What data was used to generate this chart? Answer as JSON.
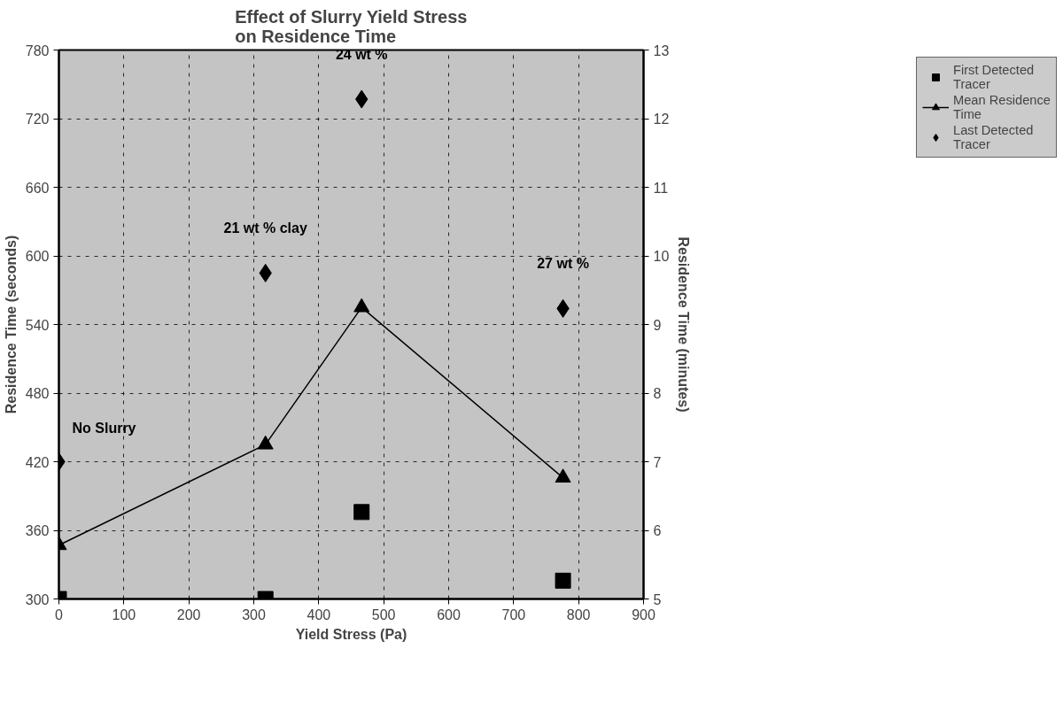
{
  "chart_data": {
    "type": "scatter",
    "title": "Effect of Slurry Yield Stress\non Residence Time",
    "xlabel": "Yield Stress (Pa)",
    "ylabel": "Residence Time (seconds)",
    "y2label": "Residence Time (minutes)",
    "xlim": [
      0,
      900
    ],
    "xticks": [
      0,
      100,
      200,
      300,
      400,
      500,
      600,
      700,
      800,
      900
    ],
    "ylim": [
      300,
      780
    ],
    "yticks": [
      300,
      360,
      420,
      480,
      540,
      600,
      660,
      720,
      780
    ],
    "y2lim": [
      5,
      13
    ],
    "y2ticks": [
      5,
      6,
      7,
      8,
      9,
      10,
      11,
      12,
      13
    ],
    "x": [
      0,
      318,
      466,
      776
    ],
    "series": [
      {
        "name": "First Detected Tracer",
        "marker": "square",
        "color": "#000000",
        "values": [
          300,
          300,
          376,
          316
        ]
      },
      {
        "name": "Mean Residence Time",
        "type": "line",
        "marker": "triangle",
        "color": "#000000",
        "values": [
          347,
          435,
          555,
          406
        ]
      },
      {
        "name": "Last Detected Tracer",
        "marker": "diamond",
        "color": "#000000",
        "values": [
          420,
          585,
          737,
          554
        ]
      }
    ],
    "annotations": [
      {
        "text": "No Slurry",
        "x": 0,
        "y": 420
      },
      {
        "text": "21 wt % clay",
        "x": 318,
        "y": 585
      },
      {
        "text": "24 wt %",
        "x": 466,
        "y": 737
      },
      {
        "text": "27 wt %",
        "x": 776,
        "y": 554
      }
    ],
    "grid": true,
    "legend": "top right"
  }
}
